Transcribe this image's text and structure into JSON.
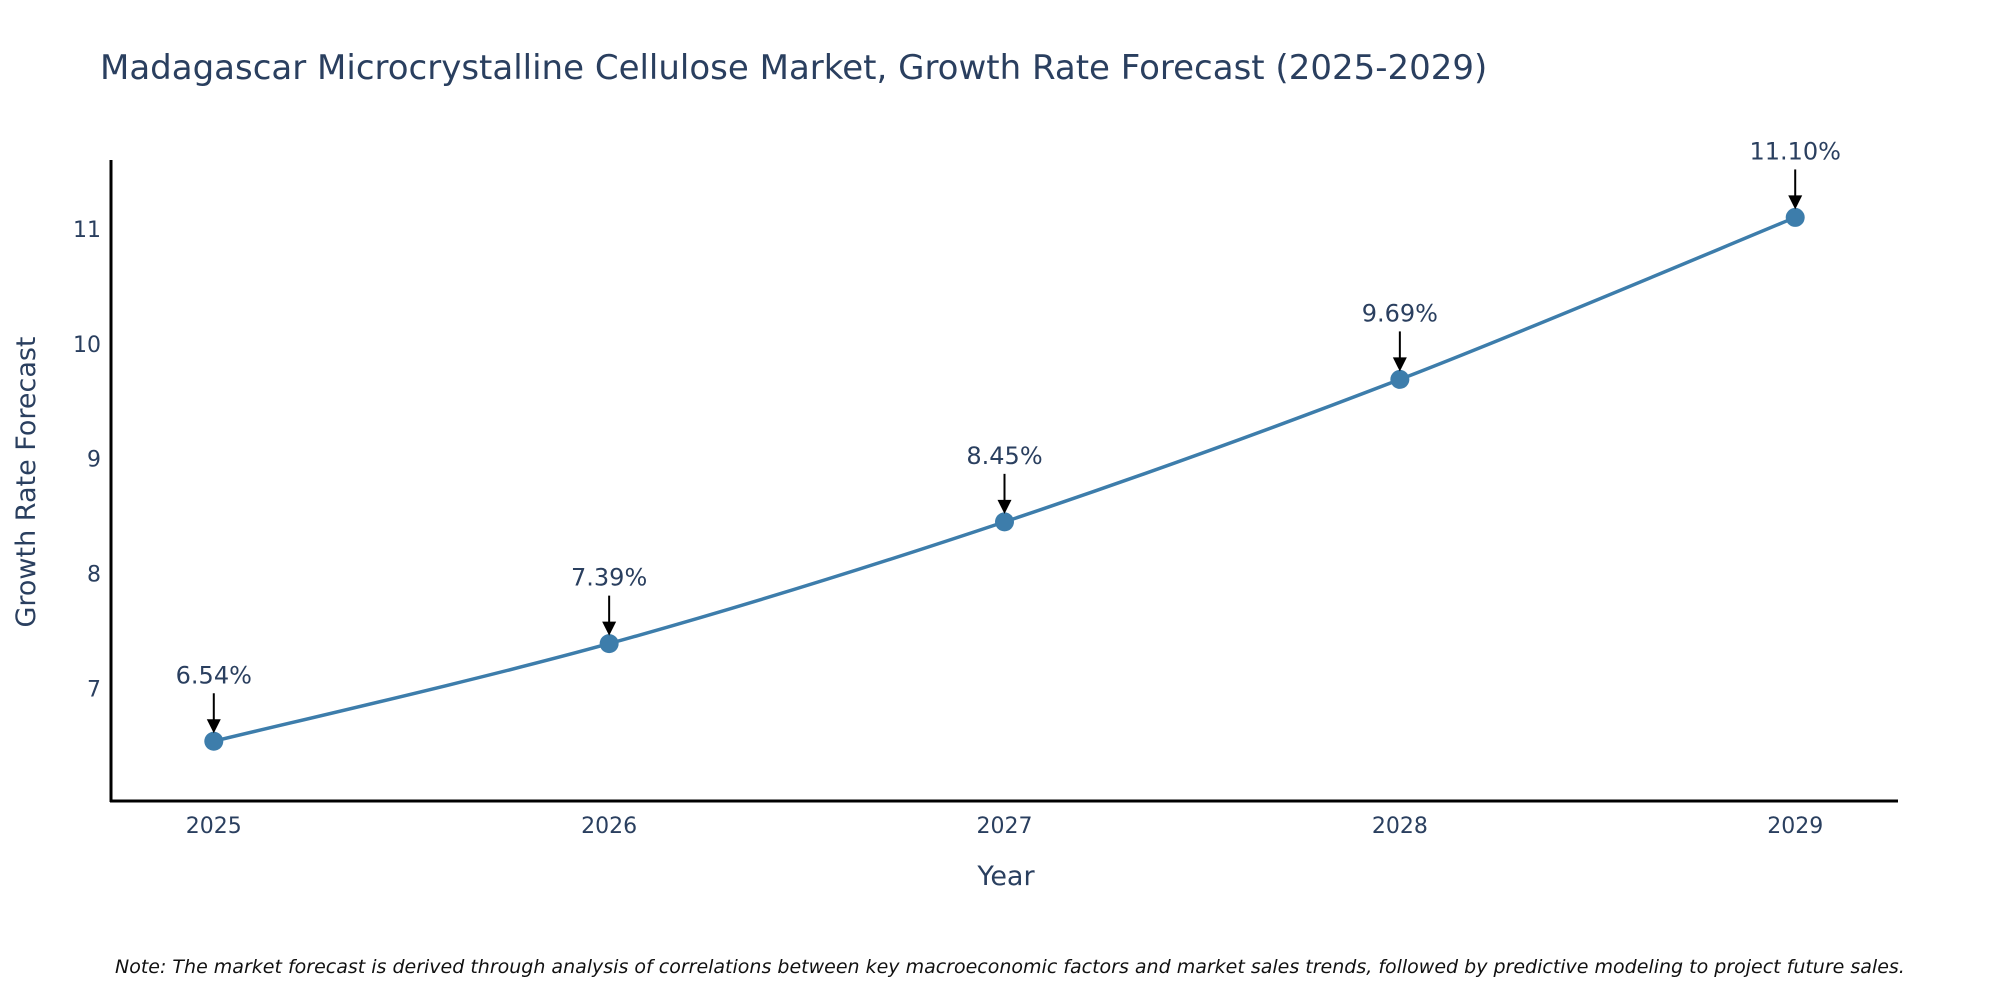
{
  "chart_data": {
    "type": "line",
    "title": "Madagascar Microcrystalline Cellulose Market, Growth Rate Forecast (2025-2029)",
    "xlabel": "Year",
    "ylabel": "Growth Rate Forecast",
    "categories": [
      "2025",
      "2026",
      "2027",
      "2028",
      "2029"
    ],
    "x": [
      2025,
      2026,
      2027,
      2028,
      2029
    ],
    "values": [
      6.54,
      7.39,
      8.45,
      9.69,
      11.1
    ],
    "data_labels": [
      "6.54%",
      "7.39%",
      "8.45%",
      "9.69%",
      "11.10%"
    ],
    "y_ticks": [
      7,
      8,
      9,
      10,
      11
    ],
    "ylim": [
      6.02,
      11.6
    ],
    "xlim": [
      2024.74,
      2029.26
    ],
    "grid": false,
    "legend": "none",
    "series_color": "#3d7dab",
    "axis_color": "#000000",
    "annotation_arrow_color": "#000000"
  },
  "footnote": "Note: The market forecast is derived through analysis of correlations between key macroeconomic factors and market sales trends, followed by predictive modeling to project future sales."
}
